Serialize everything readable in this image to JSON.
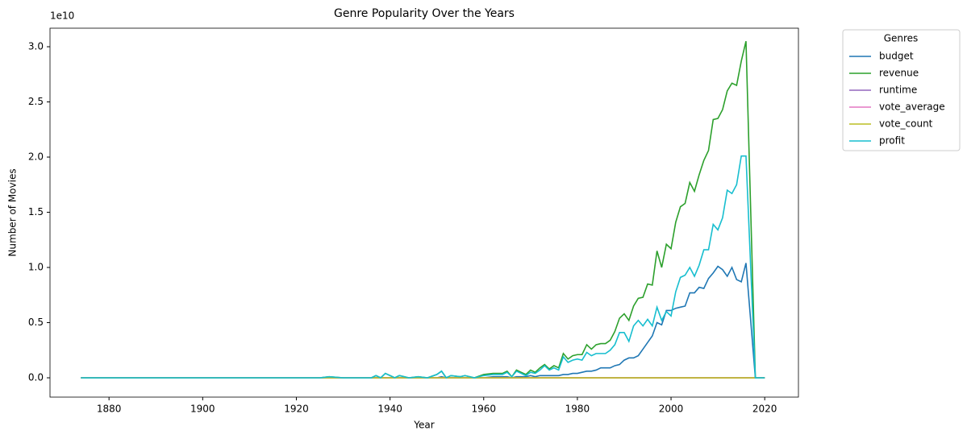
{
  "chart_data": {
    "type": "line",
    "title": "Genre Popularity Over the Years",
    "xlabel": "Year",
    "ylabel": "Number of Movies",
    "y_offset_label": "1e10",
    "legend_title": "Genres",
    "legend": "outside upper right",
    "grid": false,
    "x": [
      1874,
      1900,
      1925,
      1927,
      1930,
      1936,
      1937,
      1938,
      1939,
      1940,
      1941,
      1942,
      1944,
      1946,
      1948,
      1950,
      1951,
      1952,
      1953,
      1955,
      1956,
      1958,
      1960,
      1962,
      1964,
      1965,
      1966,
      1967,
      1968,
      1969,
      1970,
      1971,
      1972,
      1973,
      1974,
      1975,
      1976,
      1977,
      1978,
      1979,
      1980,
      1981,
      1982,
      1983,
      1984,
      1985,
      1986,
      1987,
      1988,
      1989,
      1990,
      1991,
      1992,
      1993,
      1994,
      1995,
      1996,
      1997,
      1998,
      1999,
      2000,
      2001,
      2002,
      2003,
      2004,
      2005,
      2006,
      2007,
      2008,
      2009,
      2010,
      2011,
      2012,
      2013,
      2014,
      2015,
      2016,
      2018,
      2020
    ],
    "series": [
      {
        "name": "budget",
        "color": "#1f77b4",
        "values": [
          0,
          0,
          0,
          0,
          0,
          0,
          0,
          0,
          0,
          0,
          0,
          0,
          0,
          0,
          0,
          0,
          0.01,
          0,
          0,
          0,
          0,
          0,
          0,
          0.01,
          0.01,
          0.01,
          0,
          0.01,
          0.01,
          0.01,
          0.02,
          0.01,
          0.02,
          0.02,
          0.02,
          0.02,
          0.02,
          0.03,
          0.03,
          0.04,
          0.04,
          0.05,
          0.06,
          0.06,
          0.07,
          0.09,
          0.09,
          0.09,
          0.11,
          0.12,
          0.16,
          0.18,
          0.18,
          0.2,
          0.26,
          0.32,
          0.38,
          0.5,
          0.48,
          0.61,
          0.61,
          0.63,
          0.64,
          0.65,
          0.77,
          0.77,
          0.82,
          0.81,
          0.9,
          0.95,
          1.01,
          0.98,
          0.92,
          1.0,
          0.89,
          0.87,
          1.04,
          0,
          0
        ]
      },
      {
        "name": "revenue",
        "color": "#2ca02c",
        "values": [
          0,
          0,
          0,
          0.01,
          0,
          0,
          0.02,
          0,
          0.04,
          0.02,
          0,
          0.02,
          0,
          0.01,
          0,
          0.03,
          0.06,
          0,
          0.02,
          0.01,
          0.02,
          0,
          0.03,
          0.04,
          0.04,
          0.06,
          0.01,
          0.07,
          0.05,
          0.03,
          0.07,
          0.05,
          0.09,
          0.12,
          0.08,
          0.11,
          0.09,
          0.22,
          0.17,
          0.2,
          0.21,
          0.21,
          0.3,
          0.26,
          0.3,
          0.31,
          0.31,
          0.34,
          0.42,
          0.54,
          0.58,
          0.52,
          0.65,
          0.72,
          0.73,
          0.85,
          0.84,
          1.15,
          1.0,
          1.21,
          1.17,
          1.41,
          1.55,
          1.58,
          1.77,
          1.69,
          1.84,
          1.97,
          2.06,
          2.34,
          2.35,
          2.43,
          2.6,
          2.67,
          2.65,
          2.87,
          3.05,
          0,
          0
        ]
      },
      {
        "name": "runtime",
        "color": "#9467bd",
        "values": [
          0,
          0,
          0,
          0,
          0,
          0,
          0,
          0,
          0,
          0,
          0,
          0,
          0,
          0,
          0,
          0,
          0,
          0,
          0,
          0,
          0,
          0,
          0,
          0,
          0,
          0,
          0,
          0,
          0,
          0,
          0,
          0,
          0,
          0,
          0,
          0,
          0,
          0,
          0,
          0,
          0,
          0,
          0,
          0,
          0,
          0,
          0,
          0,
          0,
          0,
          0,
          0,
          0,
          0,
          0,
          0,
          0,
          0,
          0,
          0,
          0,
          0,
          0,
          0,
          0,
          0,
          0,
          0,
          0,
          0,
          0,
          0,
          0,
          0,
          0,
          0,
          0,
          0,
          0
        ]
      },
      {
        "name": "vote_average",
        "color": "#e377c2",
        "values": [
          0,
          0,
          0,
          0,
          0,
          0,
          0,
          0,
          0,
          0,
          0,
          0,
          0,
          0,
          0,
          0,
          0,
          0,
          0,
          0,
          0,
          0,
          0,
          0,
          0,
          0,
          0,
          0,
          0,
          0,
          0,
          0,
          0,
          0,
          0,
          0,
          0,
          0,
          0,
          0,
          0,
          0,
          0,
          0,
          0,
          0,
          0,
          0,
          0,
          0,
          0,
          0,
          0,
          0,
          0,
          0,
          0,
          0,
          0,
          0,
          0,
          0,
          0,
          0,
          0,
          0,
          0,
          0,
          0,
          0,
          0,
          0,
          0,
          0,
          0,
          0,
          0,
          0,
          0
        ]
      },
      {
        "name": "vote_count",
        "color": "#bcbd22",
        "values": [
          0,
          0,
          0,
          0,
          0,
          0,
          0,
          0,
          0,
          0,
          0,
          0,
          0,
          0,
          0,
          0,
          0,
          0,
          0,
          0,
          0,
          0,
          0,
          0,
          0,
          0,
          0,
          0,
          0,
          0,
          0,
          0,
          0,
          0,
          0,
          0,
          0,
          0,
          0,
          0,
          0,
          0,
          0,
          0,
          0,
          0,
          0,
          0,
          0,
          0,
          0,
          0,
          0,
          0,
          0,
          0,
          0,
          0,
          0,
          0,
          0,
          0,
          0,
          0,
          0,
          0,
          0,
          0,
          0,
          0,
          0,
          0,
          0,
          0,
          0,
          0,
          0,
          0,
          0
        ]
      },
      {
        "name": "profit",
        "color": "#17becf",
        "values": [
          0,
          0,
          0,
          0.01,
          0,
          0,
          0.02,
          0,
          0.04,
          0.02,
          0,
          0.02,
          0,
          0.01,
          0,
          0.03,
          0.06,
          0,
          0.02,
          0.01,
          0.02,
          0,
          0.02,
          0.03,
          0.03,
          0.05,
          0.01,
          0.06,
          0.04,
          0.02,
          0.05,
          0.04,
          0.07,
          0.11,
          0.07,
          0.09,
          0.07,
          0.19,
          0.14,
          0.16,
          0.17,
          0.16,
          0.23,
          0.2,
          0.22,
          0.22,
          0.22,
          0.25,
          0.3,
          0.41,
          0.41,
          0.33,
          0.47,
          0.52,
          0.47,
          0.53,
          0.47,
          0.64,
          0.52,
          0.6,
          0.56,
          0.78,
          0.91,
          0.93,
          1.0,
          0.92,
          1.02,
          1.16,
          1.16,
          1.39,
          1.34,
          1.45,
          1.7,
          1.67,
          1.75,
          2.01,
          2.01,
          0,
          0
        ]
      }
    ],
    "xlim": [
      1867.4,
      2027.2
    ],
    "xticks": [
      1880,
      1900,
      1920,
      1940,
      1960,
      1980,
      2000,
      2020
    ],
    "ylim": [
      -0.175,
      3.168
    ],
    "yticks": [
      {
        "value": 0,
        "label": "0.0"
      },
      0.5,
      {
        "value": 1,
        "label": "1.0"
      },
      1.5,
      {
        "value": 2,
        "label": "2.0"
      },
      2.5,
      {
        "value": 3,
        "label": "3.0"
      }
    ]
  }
}
